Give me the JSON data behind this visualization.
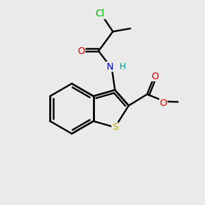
{
  "bg_color": "#ebebeb",
  "atom_colors": {
    "C": "#000000",
    "Cl": "#00bb00",
    "O": "#ff0000",
    "N": "#0000ff",
    "S": "#bbaa00",
    "H": "#008888"
  },
  "bond_color": "#000000",
  "bond_width": 1.8,
  "figsize": [
    3.0,
    3.0
  ],
  "dpi": 100,
  "xlim": [
    0,
    10
  ],
  "ylim": [
    0,
    10
  ],
  "font_size": 10
}
